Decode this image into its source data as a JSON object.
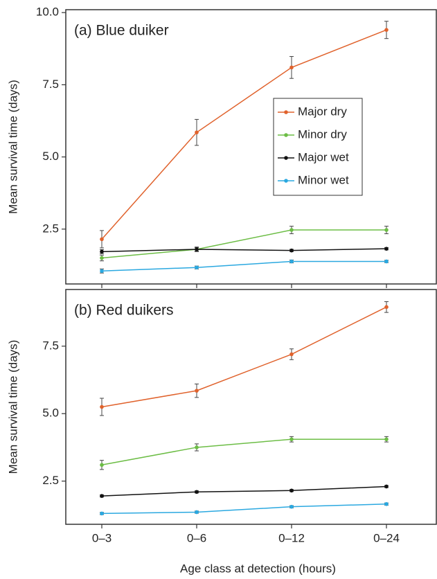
{
  "chart_data": [
    {
      "type": "line",
      "title": "(a) Blue duiker",
      "y_label": "Mean survival time (days)",
      "ylim": [
        0.6,
        10.1
      ],
      "yticks": [
        2.5,
        {
          "value": 5,
          "label": "5.0"
        },
        7.5,
        {
          "value": 10,
          "label": "10.0"
        }
      ],
      "legend": "center-right",
      "series": [
        {
          "name": "Major dry",
          "color": "#e0622c",
          "values": [
            2.15,
            5.85,
            8.1,
            9.4
          ],
          "errors": [
            0.3,
            0.45,
            0.38,
            0.3
          ]
        },
        {
          "name": "Minor dry",
          "color": "#6cbd45",
          "values": [
            1.5,
            1.8,
            2.47,
            2.47
          ],
          "errors": [
            0.1,
            0.08,
            0.13,
            0.13
          ]
        },
        {
          "name": "Major wet",
          "color": "#111111",
          "values": [
            1.72,
            1.8,
            1.76,
            1.82
          ],
          "errors": [
            0.07,
            0.06,
            0.04,
            0.04
          ]
        },
        {
          "name": "Minor wet",
          "color": "#2aa8e0",
          "values": [
            1.05,
            1.17,
            1.38,
            1.38
          ],
          "errors": [
            0.07,
            0.05,
            0.05,
            0.04
          ]
        }
      ]
    },
    {
      "type": "line",
      "title": "(b) Red duikers",
      "y_label": "Mean survival time (days)",
      "x_label": "Age class at detection (hours)",
      "categories": [
        "0–3",
        "0–6",
        "0–12",
        "0–24"
      ],
      "ylim": [
        0.9,
        9.6
      ],
      "yticks": [
        2.5,
        {
          "value": 5,
          "label": "5.0"
        },
        7.5
      ],
      "series": [
        {
          "name": "Major dry",
          "color": "#e0622c",
          "values": [
            5.25,
            5.85,
            7.2,
            8.95
          ],
          "errors": [
            0.32,
            0.25,
            0.2,
            0.2
          ]
        },
        {
          "name": "Minor dry",
          "color": "#6cbd45",
          "values": [
            3.1,
            3.75,
            4.05,
            4.05
          ],
          "errors": [
            0.17,
            0.13,
            0.1,
            0.1
          ]
        },
        {
          "name": "Major wet",
          "color": "#111111",
          "values": [
            1.95,
            2.1,
            2.15,
            2.3
          ],
          "errors": [
            0.04,
            0.04,
            0.04,
            0.04
          ]
        },
        {
          "name": "Minor wet",
          "color": "#2aa8e0",
          "values": [
            1.3,
            1.35,
            1.55,
            1.65
          ],
          "errors": [
            0.04,
            0.04,
            0.04,
            0.04
          ]
        }
      ]
    }
  ]
}
